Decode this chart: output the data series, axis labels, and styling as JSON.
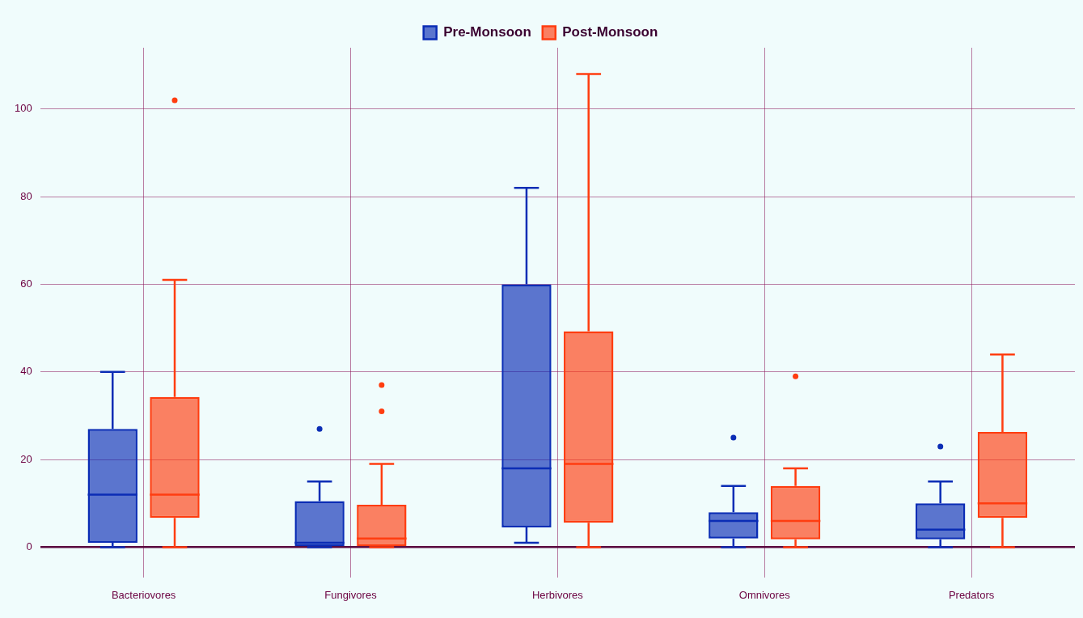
{
  "chart_data": {
    "type": "box",
    "categories": [
      "Bacteriovores",
      "Fungivores",
      "Herbivores",
      "Omnivores",
      "Predators"
    ],
    "series": [
      {
        "name": "Pre-Monsoon",
        "color": "#0b2db5",
        "boxes": [
          {
            "low": 0,
            "q1": 1,
            "median": 12,
            "q3": 27,
            "high": 40
          },
          {
            "low": 0,
            "q1": 0,
            "median": 1,
            "q3": 10.5,
            "high": 15,
            "outliers": [
              27
            ]
          },
          {
            "low": 1,
            "q1": 4.5,
            "median": 18,
            "q3": 60,
            "high": 82
          },
          {
            "low": 0,
            "q1": 2,
            "median": 6,
            "q3": 8,
            "high": 14,
            "outliers": [
              25
            ]
          },
          {
            "low": 0,
            "q1": 1.8,
            "median": 4,
            "q3": 10,
            "high": 15,
            "outliers": [
              23
            ]
          }
        ]
      },
      {
        "name": "Post-Monsoon",
        "color": "#ff3d10",
        "boxes": [
          {
            "low": 0,
            "q1": 6.7,
            "median": 12,
            "q3": 34.3,
            "high": 61,
            "outliers": [
              102
            ]
          },
          {
            "low": 0,
            "q1": 0,
            "median": 2,
            "q3": 9.7,
            "high": 19,
            "outliers": [
              31,
              37
            ]
          },
          {
            "low": 0,
            "q1": 5.6,
            "median": 19,
            "q3": 49.3,
            "high": 108
          },
          {
            "low": 0,
            "q1": 1.8,
            "median": 6,
            "q3": 14,
            "high": 18,
            "outliers": [
              39
            ]
          },
          {
            "low": 0,
            "q1": 6.7,
            "median": 10,
            "q3": 26.3,
            "high": 44
          }
        ]
      }
    ],
    "ylim": [
      -7,
      114
    ],
    "yticks": [
      0,
      20,
      40,
      60,
      80,
      100
    ],
    "grid": true,
    "legend": "top"
  }
}
